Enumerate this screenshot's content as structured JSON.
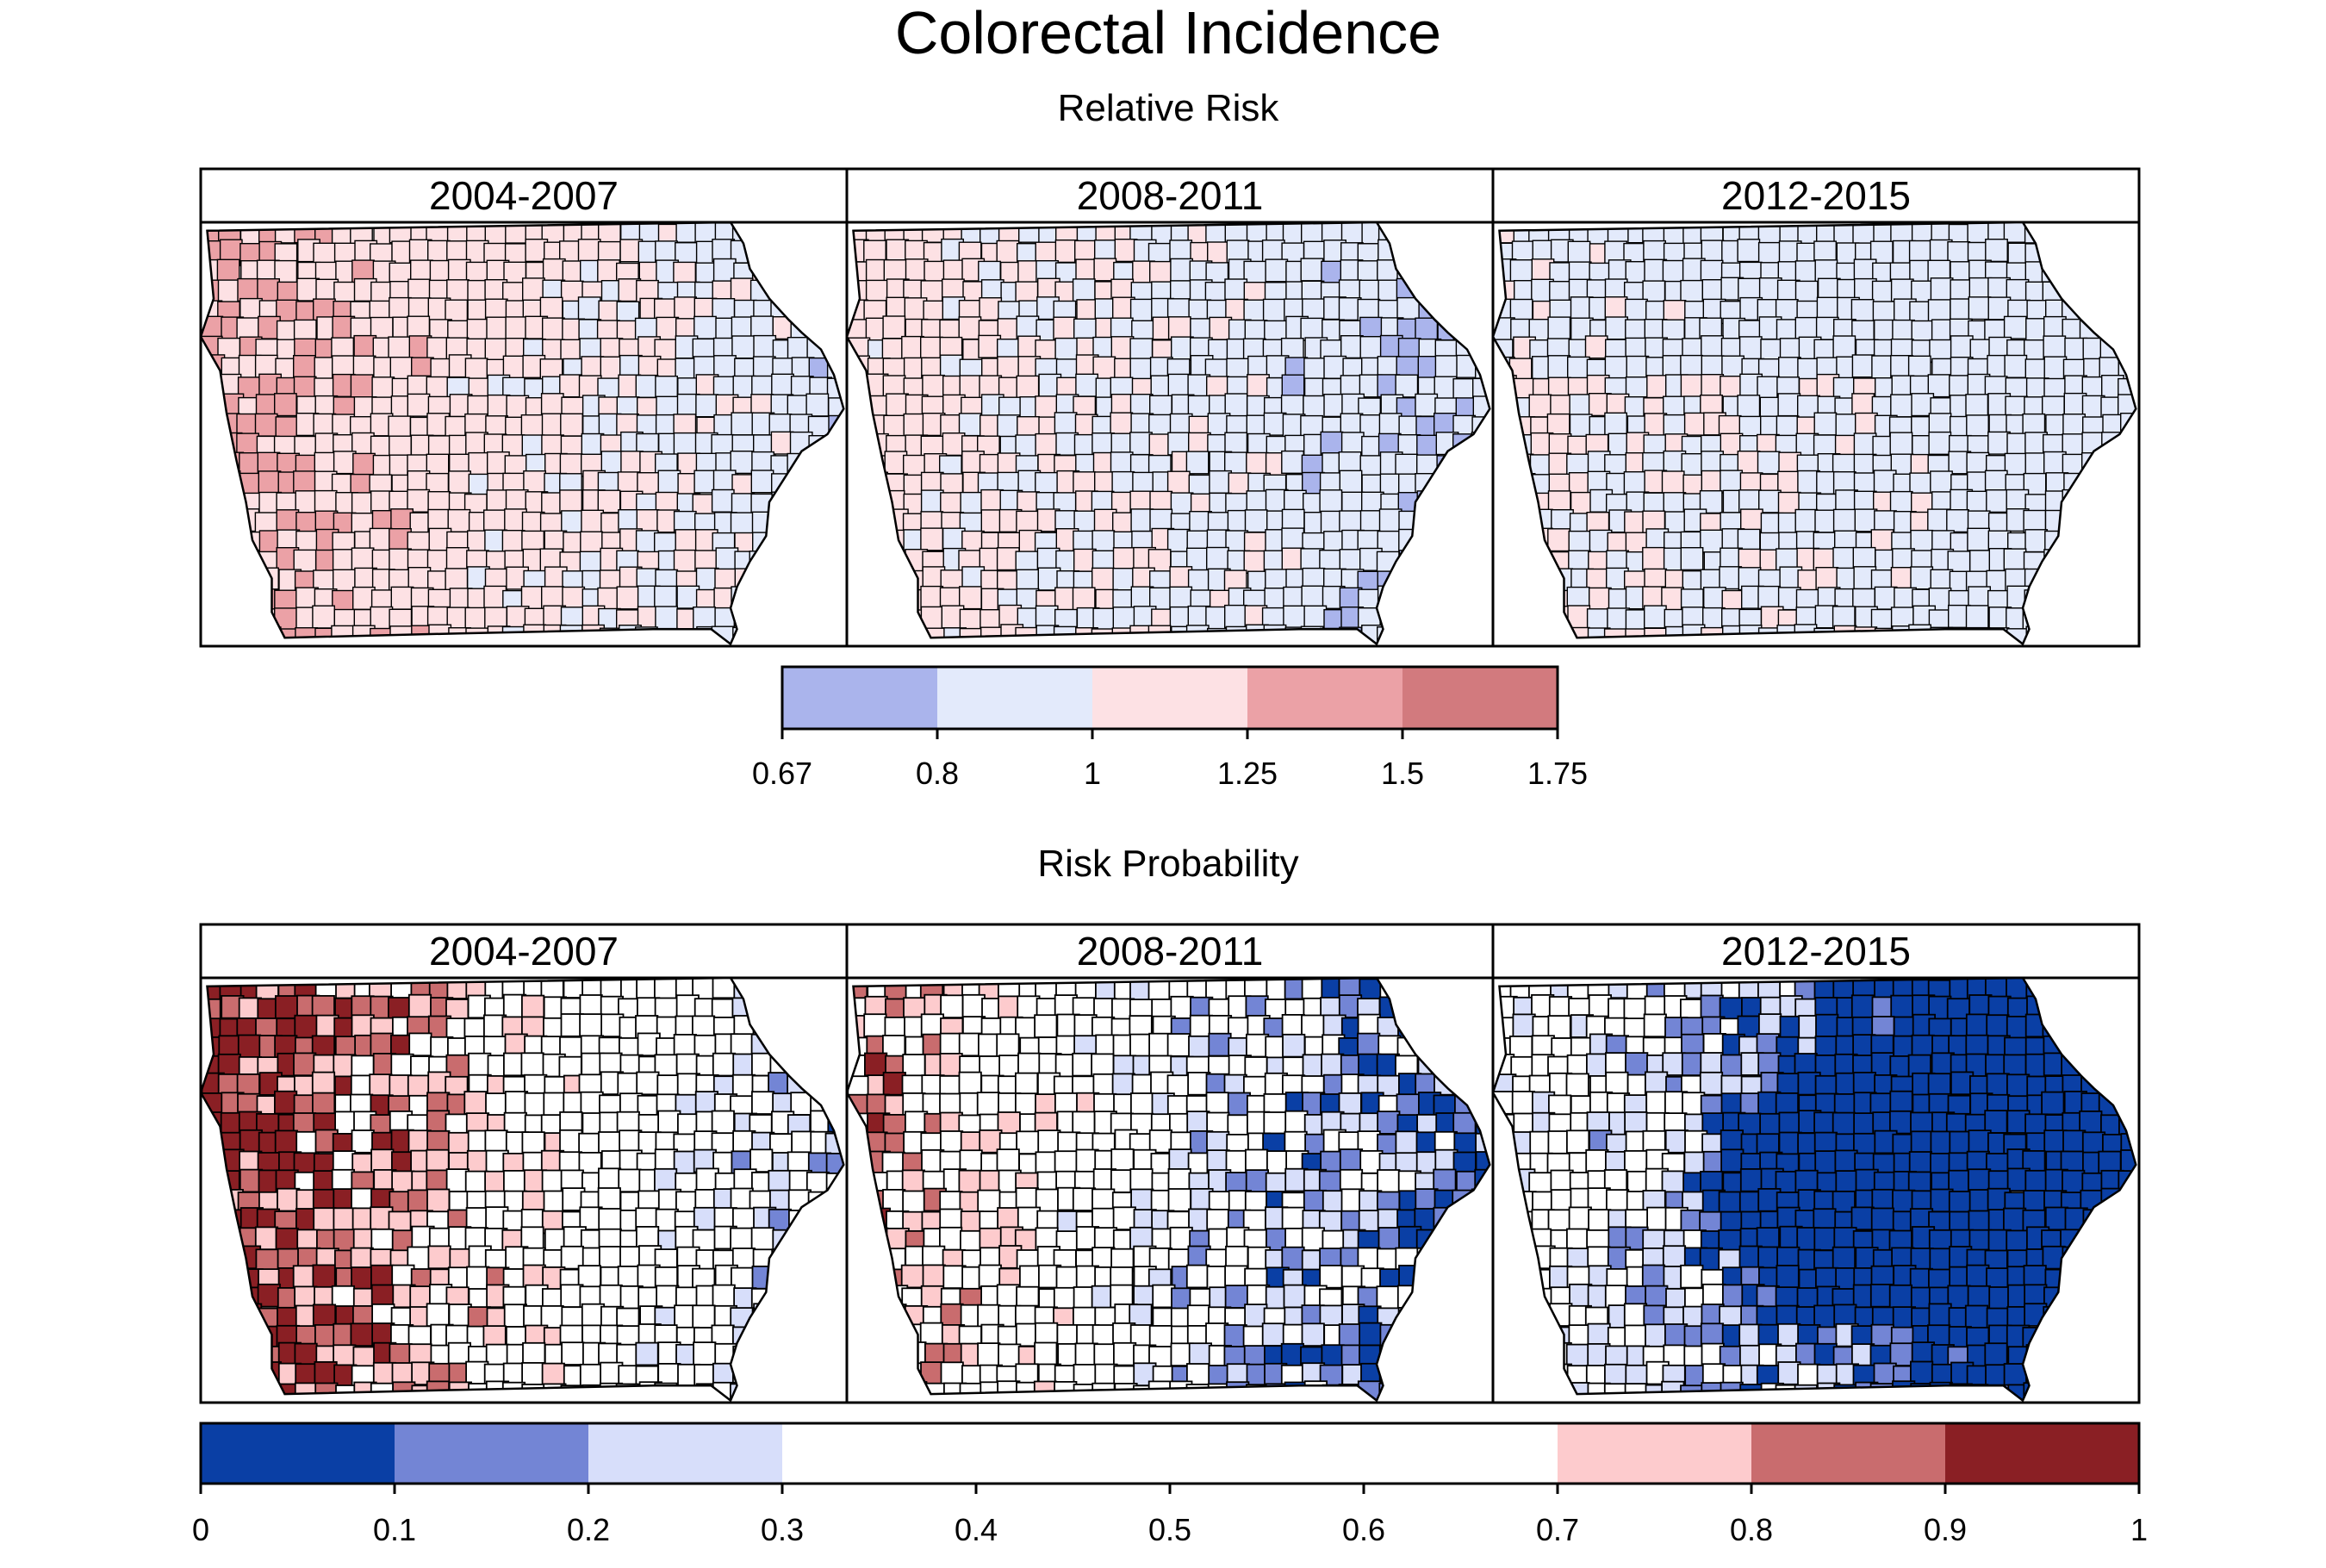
{
  "title": "Colorectal Incidence",
  "sections": [
    {
      "id": "relative-risk",
      "subtitle": "Relative Risk",
      "panels": [
        {
          "label": "2004-2007",
          "scheme": "red-heavy"
        },
        {
          "label": "2008-2011",
          "scheme": "mixed-light"
        },
        {
          "label": "2012-2015",
          "scheme": "blue-light"
        }
      ],
      "legend": {
        "ticks": [
          "0.67",
          "0.8",
          "1",
          "1.25",
          "1.5",
          "1.75"
        ],
        "bins": [
          {
            "from": 0.67,
            "to": 0.8,
            "color": "#aab4ec"
          },
          {
            "from": 0.8,
            "to": 1,
            "color": "#e3eafb"
          },
          {
            "from": 1,
            "to": 1.25,
            "color": "#fde1e4"
          },
          {
            "from": 1.25,
            "to": 1.5,
            "color": "#eba1a6"
          },
          {
            "from": 1.5,
            "to": 1.75,
            "color": "#d27a7e"
          }
        ]
      }
    },
    {
      "id": "risk-probability",
      "subtitle": "Risk Probability",
      "panels": [
        {
          "label": "2004-2007",
          "scheme": "high-prob-west"
        },
        {
          "label": "2008-2011",
          "scheme": "mixed-prob"
        },
        {
          "label": "2012-2015",
          "scheme": "low-prob-east"
        }
      ],
      "legend": {
        "ticks": [
          "0",
          "0.1",
          "0.2",
          "0.3",
          "0.4",
          "0.5",
          "0.6",
          "0.7",
          "0.8",
          "0.9",
          "1"
        ],
        "bins": [
          {
            "from": 0,
            "to": 0.1,
            "color": "#0a3fa5"
          },
          {
            "from": 0.1,
            "to": 0.2,
            "color": "#7385d5"
          },
          {
            "from": 0.2,
            "to": 0.3,
            "color": "#d7defa"
          },
          {
            "from": 0.3,
            "to": 0.7,
            "color": "#ffffff"
          },
          {
            "from": 0.7,
            "to": 0.8,
            "color": "#fdcbcd"
          },
          {
            "from": 0.8,
            "to": 0.9,
            "color": "#c96c6e"
          },
          {
            "from": 0.9,
            "to": 1,
            "color": "#8a1f24"
          }
        ]
      }
    }
  ]
}
